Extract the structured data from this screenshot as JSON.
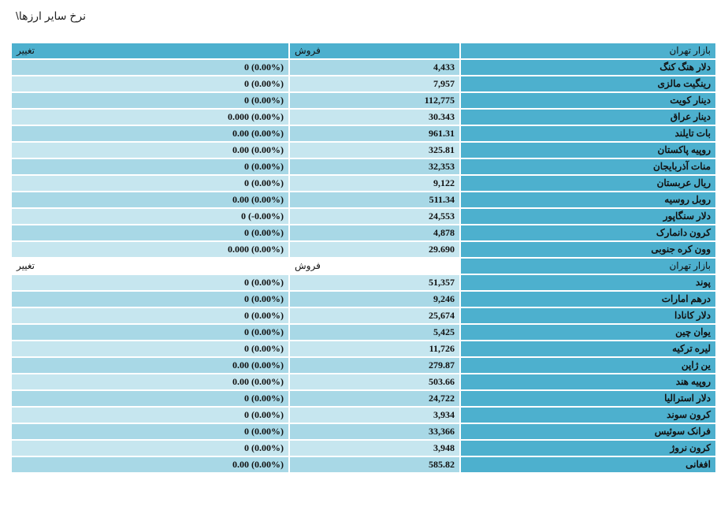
{
  "title": "نرخ سایر ارزها\\",
  "header": {
    "market": "بازار تهران",
    "sell": "فروش",
    "change": "تغییر"
  },
  "rows": [
    {
      "name": "دلار هنگ کنگ",
      "sell": "4,433",
      "change": "0 (0.00%)"
    },
    {
      "name": "رینگیت مالزی",
      "sell": "7,957",
      "change": "0 (0.00%)"
    },
    {
      "name": "دینار کویت",
      "sell": "112,775",
      "change": "0 (0.00%)"
    },
    {
      "name": "دینار عراق",
      "sell": "30.343",
      "change": "0.000 (0.00%)"
    },
    {
      "name": "بات تایلند",
      "sell": "961.31",
      "change": "0.00 (0.00%)"
    },
    {
      "name": "روپیه پاکستان",
      "sell": "325.81",
      "change": "0.00 (0.00%)"
    },
    {
      "name": "منات آذربایجان",
      "sell": "32,353",
      "change": "0 (0.00%)"
    },
    {
      "name": "ریال عربستان",
      "sell": "9,122",
      "change": "0 (0.00%)"
    },
    {
      "name": "روبل روسیه",
      "sell": "511.34",
      "change": "0.00 (0.00%)"
    },
    {
      "name": "دلار سنگاپور",
      "sell": "24,553",
      "change": "0 (-0.00%)"
    },
    {
      "name": "کرون دانمارک",
      "sell": "4,878",
      "change": "0 (0.00%)"
    },
    {
      "name": "وون کره جنوبی",
      "sell": "29.690",
      "change": "0.000 (0.00%)"
    }
  ],
  "subheader": {
    "market": "بازار تهران",
    "sell": "فروش",
    "change": "تغییر"
  },
  "rows2": [
    {
      "name": "پوند",
      "sell": "51,357",
      "change": "0 (0.00%)"
    },
    {
      "name": "درهم امارات",
      "sell": "9,246",
      "change": "0 (0.00%)"
    },
    {
      "name": "دلار کانادا",
      "sell": "25,674",
      "change": "0 (0.00%)"
    },
    {
      "name": "یوان چین",
      "sell": "5,425",
      "change": "0 (0.00%)"
    },
    {
      "name": "لیره ترکیه",
      "sell": "11,726",
      "change": "0 (0.00%)"
    },
    {
      "name": "ین ژاپن",
      "sell": "279.87",
      "change": "0.00 (0.00%)"
    },
    {
      "name": "روپیه هند",
      "sell": "503.66",
      "change": "0.00 (0.00%)"
    },
    {
      "name": "دلار استرالیا",
      "sell": "24,722",
      "change": "0 (0.00%)"
    },
    {
      "name": "کرون سوند",
      "sell": "3,934",
      "change": "0 (0.00%)"
    },
    {
      "name": "فرانک سوئیس",
      "sell": "33,366",
      "change": "0 (0.00%)"
    },
    {
      "name": "کرون نروژ",
      "sell": "3,948",
      "change": "0 (0.00%)"
    },
    {
      "name": "افغانی",
      "sell": "585.82",
      "change": "0.00 (0.00%)"
    }
  ],
  "colors": {
    "header": "#4db0ce",
    "row_light": "#a8d8e6",
    "row_lighter": "#c6e6ef"
  }
}
